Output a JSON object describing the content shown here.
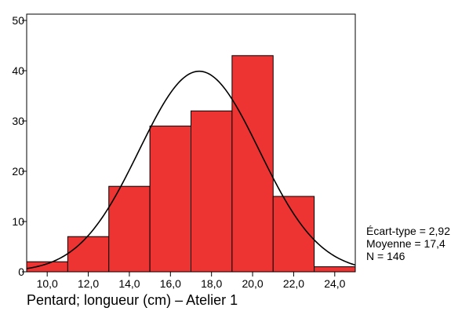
{
  "chart_data": {
    "type": "bar",
    "subtype": "histogram",
    "bins": [
      {
        "from": 9.0,
        "to": 11.0,
        "count": 2
      },
      {
        "from": 11.0,
        "to": 13.0,
        "count": 7
      },
      {
        "from": 13.0,
        "to": 15.0,
        "count": 17
      },
      {
        "from": 15.0,
        "to": 17.0,
        "count": 29
      },
      {
        "from": 17.0,
        "to": 19.0,
        "count": 32
      },
      {
        "from": 19.0,
        "to": 21.0,
        "count": 43
      },
      {
        "from": 21.0,
        "to": 23.0,
        "count": 15
      },
      {
        "from": 23.0,
        "to": 25.0,
        "count": 1
      }
    ],
    "xticks": [
      10,
      12,
      14,
      16,
      18,
      20,
      22,
      24
    ],
    "xtick_labels": [
      "10,0",
      "12,0",
      "14,0",
      "16,0",
      "18,0",
      "20,0",
      "22,0",
      "24,0"
    ],
    "yticks": [
      0,
      10,
      20,
      30,
      40,
      50
    ],
    "xlim": [
      9.0,
      25.0
    ],
    "ylim": [
      0,
      50
    ],
    "xlabel": "Pentard; longueur (cm) – Atelier 1",
    "ylabel": "",
    "title": "",
    "bar_color": "#ee3333",
    "bar_edge_color": "#000000",
    "normal_curve": {
      "mean": 17.4,
      "sd": 2.92,
      "n": 146,
      "bin_width": 2.0
    },
    "stats": [
      "Écart-type = 2,92",
      "Moyenne = 17,4",
      "N = 146"
    ],
    "grid": false
  }
}
